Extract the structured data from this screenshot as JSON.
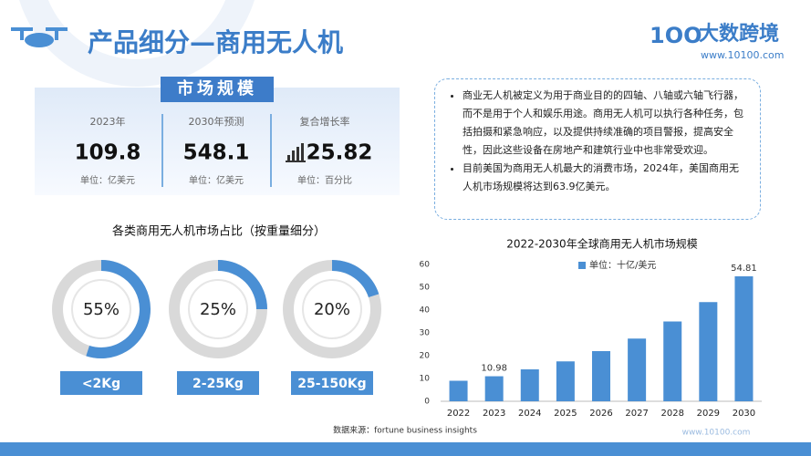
{
  "header": {
    "title": "产品细分—商用无人机",
    "brand": "大数跨境",
    "url": "www.10100.com"
  },
  "market": {
    "title": "市场规模",
    "stats": [
      {
        "label": "2023年",
        "value": 109.8,
        "unit": "单位：亿美元"
      },
      {
        "label": "2030年预测",
        "value": 548.1,
        "unit": "单位：亿美元"
      },
      {
        "label": "复合增长率",
        "value": 25.82,
        "unit": "单位：百分比"
      }
    ]
  },
  "notes": [
    "商业无人机被定义为用于商业目的的四轴、八轴或六轴飞行器，而不是用于个人和娱乐用途。商用无人机可以执行各种任务，包括拍摄和紧急响应，以及提供持续准确的项目警报，提高安全性，因此这些设备在房地产和建筑行业中也非常受欢迎。",
    "目前美国为商用无人机最大的消费市场，2024年，美国商用无人机市场规模将达到63.9亿美元。"
  ],
  "source": "数据来源：fortune business insights",
  "footer_url": "www.10100.com",
  "chart_data": [
    {
      "type": "donut",
      "title": "各类商用无人机市场占比（按重量细分）",
      "categories": [
        "<2Kg",
        "2-25Kg",
        "25-150Kg"
      ],
      "values": [
        55,
        25,
        20
      ],
      "value_labels": [
        "55%",
        "25%",
        "20%"
      ],
      "color": "#4a8fd4",
      "track_color": "#d9d9d9"
    },
    {
      "type": "bar",
      "title": "2022-2030年全球商用无人机市场规模",
      "categories": [
        "2022",
        "2023",
        "2024",
        "2025",
        "2026",
        "2027",
        "2028",
        "2029",
        "2030"
      ],
      "series": [
        {
          "name": "单位：十亿/美元",
          "color": "#4a8fd4",
          "values": [
            9,
            10.98,
            14,
            17.5,
            22,
            27.5,
            35,
            43.5,
            54.81
          ],
          "value_labels": [
            null,
            "10.98",
            null,
            null,
            null,
            null,
            null,
            null,
            "54.81"
          ]
        }
      ],
      "ylim": [
        0,
        60
      ],
      "yticks": [
        0,
        10,
        20,
        30,
        40,
        50,
        60
      ],
      "grid": false,
      "legend": "top"
    }
  ]
}
